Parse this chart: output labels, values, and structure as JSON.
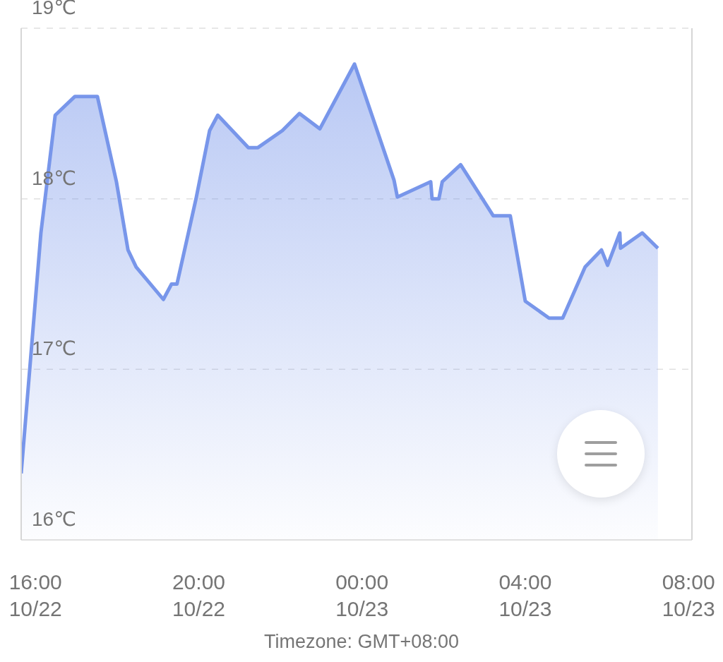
{
  "chart_data": {
    "type": "area",
    "x": [
      "--10-22T15:39",
      "--10-22T16:08",
      "--10-22T16:29",
      "--10-22T16:58",
      "--10-22T17:31",
      "--10-22T17:59",
      "--10-22T18:16",
      "--10-22T18:28",
      "--10-22T19:08",
      "--10-22T19:20",
      "--10-22T19:28",
      "--10-22T19:56",
      "--10-22T20:16",
      "--10-22T20:28",
      "--10-22T21:13",
      "--10-22T21:27",
      "--10-22T22:03",
      "--10-22T22:28",
      "--10-22T22:58",
      "--10-22T23:49",
      "--10-23T00:47",
      "--10-23T00:52",
      "--10-23T01:41",
      "--10-23T01:43",
      "--10-23T01:53",
      "--10-23T01:58",
      "--10-23T02:25",
      "--10-23T03:13",
      "--10-23T03:38",
      "--10-23T04:00",
      "--10-23T04:35",
      "--10-23T04:55",
      "--10-23T05:28",
      "--10-23T05:52",
      "--10-23T06:01",
      "--10-23T06:19",
      "--10-23T06:20",
      "--10-23T06:52",
      "--10-23T07:15"
    ],
    "values": [
      16.39,
      17.8,
      18.49,
      18.6,
      18.6,
      18.1,
      17.7,
      17.6,
      17.41,
      17.5,
      17.5,
      18.0,
      18.4,
      18.49,
      18.3,
      18.3,
      18.4,
      18.5,
      18.41,
      18.79,
      18.11,
      18.01,
      18.1,
      18.0,
      18.0,
      18.1,
      18.2,
      17.9,
      17.9,
      17.4,
      17.3,
      17.3,
      17.6,
      17.7,
      17.61,
      17.8,
      17.71,
      17.8,
      17.71
    ],
    "color": "#7896ea",
    "xlim": [
      "--10-22T15:39",
      "--10-23T08:05"
    ],
    "xticks": [
      {
        "value": "--10-22T16:00",
        "label": "16:00\n10/22"
      },
      {
        "value": "--10-22T20:00",
        "label": "20:00\n10/22"
      },
      {
        "value": "--10-23T00:00",
        "label": "00:00\n10/23"
      },
      {
        "value": "--10-23T04:00",
        "label": "04:00\n10/23"
      },
      {
        "value": "--10-23T08:00",
        "label": "08:00\n10/23"
      }
    ],
    "ylim": [
      16,
      19
    ],
    "yticks": [
      {
        "value": 16,
        "label": "16℃"
      },
      {
        "value": 17,
        "label": "17℃"
      },
      {
        "value": 18,
        "label": "18℃"
      },
      {
        "value": 19,
        "label": "19℃"
      }
    ],
    "grid": "y",
    "annotations": [
      "Timezone: GMT+08:00"
    ]
  }
}
